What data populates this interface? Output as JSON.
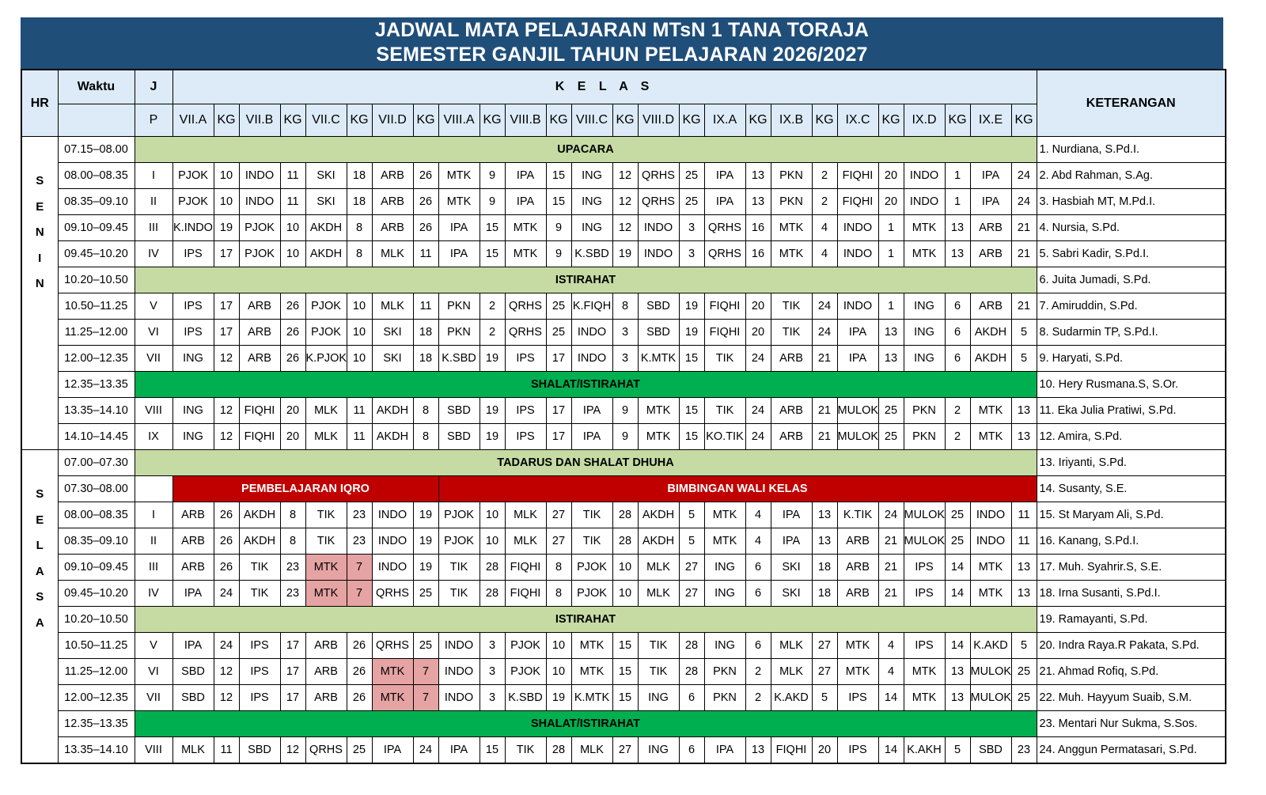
{
  "title": {
    "line1": "JADWAL MATA PELAJARAN MTsN 1 TANA TORAJA",
    "line2": "SEMESTER GANJIL TAHUN PELAJARAN 2026/2027"
  },
  "header": {
    "hr": "HR",
    "waktu": "Waktu",
    "j": "J",
    "p": "P",
    "kelas": "K E L A S",
    "keterangan": "KETERANGAN",
    "classes": [
      "VII.A",
      "KG",
      "VII.B",
      "KG",
      "VII.C",
      "KG",
      "VII.D",
      "KG",
      "VIII.A",
      "KG",
      "VIII.B",
      "KG",
      "VIII.C",
      "KG",
      "VIII.D",
      "KG",
      "IX.A",
      "KG",
      "IX.B",
      "KG",
      "IX.C",
      "KG",
      "IX.D",
      "KG",
      "IX.E",
      "KG"
    ]
  },
  "days": [
    {
      "letters": [
        "S",
        "E",
        "N",
        "I",
        "N"
      ],
      "rows": [
        {
          "time": "07.15–08.00",
          "band": "UPACARA",
          "style": "light"
        },
        {
          "time": "08.00–08.35",
          "jp": "I",
          "cells": [
            "PJOK",
            "10",
            "INDO",
            "11",
            "SKI",
            "18",
            "ARB",
            "26",
            "MTK",
            "9",
            "IPA",
            "15",
            "ING",
            "12",
            "QRHS",
            "25",
            "IPA",
            "13",
            "PKN",
            "2",
            "FIQHI",
            "20",
            "INDO",
            "1",
            "IPA",
            "24"
          ]
        },
        {
          "time": "08.35–09.10",
          "jp": "II",
          "cells": [
            "PJOK",
            "10",
            "INDO",
            "11",
            "SKI",
            "18",
            "ARB",
            "26",
            "MTK",
            "9",
            "IPA",
            "15",
            "ING",
            "12",
            "QRHS",
            "25",
            "IPA",
            "13",
            "PKN",
            "2",
            "FIQHI",
            "20",
            "INDO",
            "1",
            "IPA",
            "24"
          ]
        },
        {
          "time": "09.10–09.45",
          "jp": "III",
          "cells": [
            "K.INDO",
            "19",
            "PJOK",
            "10",
            "AKDH",
            "8",
            "ARB",
            "26",
            "IPA",
            "15",
            "MTK",
            "9",
            "ING",
            "12",
            "INDO",
            "3",
            "QRHS",
            "16",
            "MTK",
            "4",
            "INDO",
            "1",
            "MTK",
            "13",
            "ARB",
            "21"
          ]
        },
        {
          "time": "09.45–10.20",
          "jp": "IV",
          "cells": [
            "IPS",
            "17",
            "PJOK",
            "10",
            "AKDH",
            "8",
            "MLK",
            "11",
            "IPA",
            "15",
            "MTK",
            "9",
            "K.SBD",
            "19",
            "INDO",
            "3",
            "QRHS",
            "16",
            "MTK",
            "4",
            "INDO",
            "1",
            "MTK",
            "13",
            "ARB",
            "21"
          ]
        },
        {
          "time": "10.20–10.50",
          "band": "ISTIRAHAT",
          "style": "light"
        },
        {
          "time": "10.50–11.25",
          "jp": "V",
          "cells": [
            "IPS",
            "17",
            "ARB",
            "26",
            "PJOK",
            "10",
            "MLK",
            "11",
            "PKN",
            "2",
            "QRHS",
            "25",
            "K.FIQH",
            "8",
            "SBD",
            "19",
            "FIQHI",
            "20",
            "TIK",
            "24",
            "INDO",
            "1",
            "ING",
            "6",
            "ARB",
            "21"
          ]
        },
        {
          "time": "11.25–12.00",
          "jp": "VI",
          "cells": [
            "IPS",
            "17",
            "ARB",
            "26",
            "PJOK",
            "10",
            "SKI",
            "18",
            "PKN",
            "2",
            "QRHS",
            "25",
            "INDO",
            "3",
            "SBD",
            "19",
            "FIQHI",
            "20",
            "TIK",
            "24",
            "IPA",
            "13",
            "ING",
            "6",
            "AKDH",
            "5"
          ]
        },
        {
          "time": "12.00–12.35",
          "jp": "VII",
          "cells": [
            "ING",
            "12",
            "ARB",
            "26",
            "K.PJOK",
            "10",
            "SKI",
            "18",
            "K.SBD",
            "19",
            "IPS",
            "17",
            "INDO",
            "3",
            "K.MTK",
            "15",
            "TIK",
            "24",
            "ARB",
            "21",
            "IPA",
            "13",
            "ING",
            "6",
            "AKDH",
            "5"
          ]
        },
        {
          "time": "12.35–13.35",
          "band": "SHALAT/ISTIRAHAT",
          "style": "green"
        },
        {
          "time": "13.35–14.10",
          "jp": "VIII",
          "cells": [
            "ING",
            "12",
            "FIQHI",
            "20",
            "MLK",
            "11",
            "AKDH",
            "8",
            "SBD",
            "19",
            "IPS",
            "17",
            "IPA",
            "9",
            "MTK",
            "15",
            "TIK",
            "24",
            "ARB",
            "21",
            "MULOK",
            "25",
            "PKN",
            "2",
            "MTK",
            "13"
          ]
        },
        {
          "time": "14.10–14.45",
          "jp": "IX",
          "cells": [
            "ING",
            "12",
            "FIQHI",
            "20",
            "MLK",
            "11",
            "AKDH",
            "8",
            "SBD",
            "19",
            "IPS",
            "17",
            "IPA",
            "9",
            "MTK",
            "15",
            "KO.TIK",
            "24",
            "ARB",
            "21",
            "MULOK",
            "25",
            "PKN",
            "2",
            "MTK",
            "13"
          ]
        }
      ]
    },
    {
      "letters": [
        "S",
        "E",
        "L",
        "A",
        "S",
        "A"
      ],
      "rows": [
        {
          "time": "07.00–07.30",
          "band": "TADARUS DAN SHALAT DHUHA",
          "style": "light"
        },
        {
          "time": "07.30–08.00",
          "jp": "",
          "split": [
            {
              "text": "PEMBELAJARAN IQRO",
              "span": 8
            },
            {
              "text": "BIMBINGAN WALI KELAS",
              "span": 18
            }
          ]
        },
        {
          "time": "08.00–08.35",
          "jp": "I",
          "cells": [
            "ARB",
            "26",
            "AKDH",
            "8",
            "TIK",
            "23",
            "INDO",
            "19",
            "PJOK",
            "10",
            "MLK",
            "27",
            "TIK",
            "28",
            "AKDH",
            "5",
            "MTK",
            "4",
            "IPA",
            "13",
            "K.TIK",
            "24",
            "MULOK",
            "25",
            "INDO",
            "11"
          ]
        },
        {
          "time": "08.35–09.10",
          "jp": "II",
          "cells": [
            "ARB",
            "26",
            "AKDH",
            "8",
            "TIK",
            "23",
            "INDO",
            "19",
            "PJOK",
            "10",
            "MLK",
            "27",
            "TIK",
            "28",
            "AKDH",
            "5",
            "MTK",
            "4",
            "IPA",
            "13",
            "ARB",
            "21",
            "MULOK",
            "25",
            "INDO",
            "11"
          ]
        },
        {
          "time": "09.10–09.45",
          "jp": "III",
          "hl": [
            4,
            5
          ],
          "cells": [
            "ARB",
            "26",
            "TIK",
            "23",
            "MTK",
            "7",
            "INDO",
            "19",
            "TIK",
            "28",
            "FIQHI",
            "8",
            "PJOK",
            "10",
            "MLK",
            "27",
            "ING",
            "6",
            "SKI",
            "18",
            "ARB",
            "21",
            "IPS",
            "14",
            "MTK",
            "13"
          ]
        },
        {
          "time": "09.45–10.20",
          "jp": "IV",
          "hl": [
            4,
            5
          ],
          "cells": [
            "IPA",
            "24",
            "TIK",
            "23",
            "MTK",
            "7",
            "QRHS",
            "25",
            "TIK",
            "28",
            "FIQHI",
            "8",
            "PJOK",
            "10",
            "MLK",
            "27",
            "ING",
            "6",
            "SKI",
            "18",
            "ARB",
            "21",
            "IPS",
            "14",
            "MTK",
            "13"
          ]
        },
        {
          "time": "10.20–10.50",
          "band": "ISTIRAHAT",
          "style": "light"
        },
        {
          "time": "10.50–11.25",
          "jp": "V",
          "cells": [
            "IPA",
            "24",
            "IPS",
            "17",
            "ARB",
            "26",
            "QRHS",
            "25",
            "INDO",
            "3",
            "PJOK",
            "10",
            "MTK",
            "15",
            "TIK",
            "28",
            "ING",
            "6",
            "MLK",
            "27",
            "MTK",
            "4",
            "IPS",
            "14",
            "K.AKD",
            "5"
          ]
        },
        {
          "time": "11.25–12.00",
          "jp": "VI",
          "hl": [
            6,
            7
          ],
          "cells": [
            "SBD",
            "12",
            "IPS",
            "17",
            "ARB",
            "26",
            "MTK",
            "7",
            "INDO",
            "3",
            "PJOK",
            "10",
            "MTK",
            "15",
            "TIK",
            "28",
            "PKN",
            "2",
            "MLK",
            "27",
            "MTK",
            "4",
            "MTK",
            "13",
            "MULOK",
            "25"
          ]
        },
        {
          "time": "12.00–12.35",
          "jp": "VII",
          "hl": [
            6,
            7
          ],
          "cells": [
            "SBD",
            "12",
            "IPS",
            "17",
            "ARB",
            "26",
            "MTK",
            "7",
            "INDO",
            "3",
            "K.SBD",
            "19",
            "K.MTK",
            "15",
            "ING",
            "6",
            "PKN",
            "2",
            "K.AKD",
            "5",
            "IPS",
            "14",
            "MTK",
            "13",
            "MULOK",
            "25"
          ]
        },
        {
          "time": "12.35–13.35",
          "band": "SHALAT/ISTIRAHAT",
          "style": "green"
        },
        {
          "time": "13.35–14.10",
          "jp": "VIII",
          "cells": [
            "MLK",
            "11",
            "SBD",
            "12",
            "QRHS",
            "25",
            "IPA",
            "24",
            "IPA",
            "15",
            "TIK",
            "28",
            "MLK",
            "27",
            "ING",
            "6",
            "IPA",
            "13",
            "FIQHI",
            "20",
            "IPS",
            "14",
            "K.AKH",
            "5",
            "SBD",
            "23"
          ]
        }
      ]
    }
  ],
  "keterangan": [
    "1. Nurdiana, S.Pd.I.",
    "2. Abd Rahman, S.Ag.",
    "3. Hasbiah MT, M.Pd.I.",
    "4. Nursia, S.Pd.",
    "5. Sabri Kadir, S.Pd.I.",
    "6. Juita Jumadi, S.Pd.",
    "7. Amiruddin, S.Pd.",
    "8. Sudarmin TP, S.Pd.I.",
    "9. Haryati, S.Pd.",
    "10. Hery Rusmana.S, S.Or.",
    "11. Eka Julia Pratiwi, S.Pd.",
    "12. Amira, S.Pd.",
    "13. Iriyanti, S.Pd.",
    "14. Susanty, S.E.",
    "15. St Maryam Ali, S.Pd.",
    "16. Kanang, S.Pd.I.",
    "17. Muh. Syahrir.S, S.E.",
    "18. Irna Susanti, S.Pd.I.",
    "19. Ramayanti, S.Pd.",
    "20. Indra Raya.R Pakata, S.Pd.",
    "21. Ahmad Rofiq, S.Pd.",
    "22. Muh. Hayyum Suaib, S.M.",
    "23. Mentari Nur Sukma, S.Sos.",
    "24. Anggun Permatasari, S.Pd."
  ],
  "colors": {
    "title_bg": "#1f4e79",
    "header_bg": "#dcebf7",
    "band_light": "#c5dba3",
    "band_green": "#00b050",
    "band_red": "#c00000",
    "highlight": "#e6a3a3"
  }
}
